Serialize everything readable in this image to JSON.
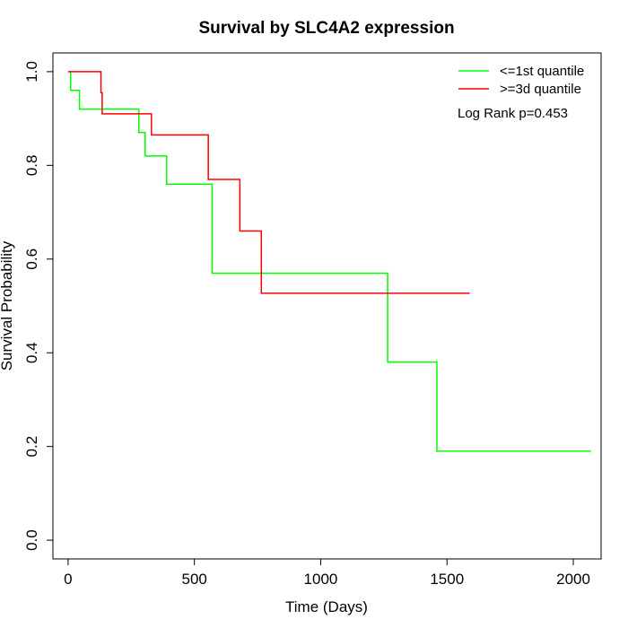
{
  "chart_data": {
    "type": "line",
    "subtype": "kaplan-meier step curve",
    "title": "Survival by SLC4A2 expression",
    "xlabel": "Time (Days)",
    "ylabel": "Survival Probability",
    "xlim": [
      -60,
      2110
    ],
    "ylim": [
      -0.04,
      1.04
    ],
    "x_ticks": [
      0,
      500,
      1000,
      1500,
      2000
    ],
    "x_tick_labels": [
      "0",
      "500",
      "1000",
      "1500",
      "2000"
    ],
    "y_ticks": [
      0.0,
      0.2,
      0.4,
      0.6,
      0.8,
      1.0
    ],
    "y_tick_labels": [
      "0.0",
      "0.2",
      "0.4",
      "0.6",
      "0.8",
      "1.0"
    ],
    "grid": false,
    "legend_position": "top-right",
    "annotation": "Log Rank p=0.453",
    "series": [
      {
        "name": "<=1st quantile",
        "color": "#00ff00",
        "x": [
          0,
          10,
          45,
          280,
          305,
          390,
          570,
          1265,
          1460,
          2070
        ],
        "y": [
          1.0,
          0.96,
          0.92,
          0.87,
          0.82,
          0.76,
          0.57,
          0.38,
          0.19,
          0.19
        ]
      },
      {
        "name": ">=3d quantile",
        "color": "#ff0000",
        "x": [
          0,
          130,
          135,
          330,
          555,
          680,
          765,
          1590
        ],
        "y": [
          1.0,
          0.955,
          0.91,
          0.865,
          0.77,
          0.66,
          0.527,
          0.527
        ]
      }
    ]
  }
}
